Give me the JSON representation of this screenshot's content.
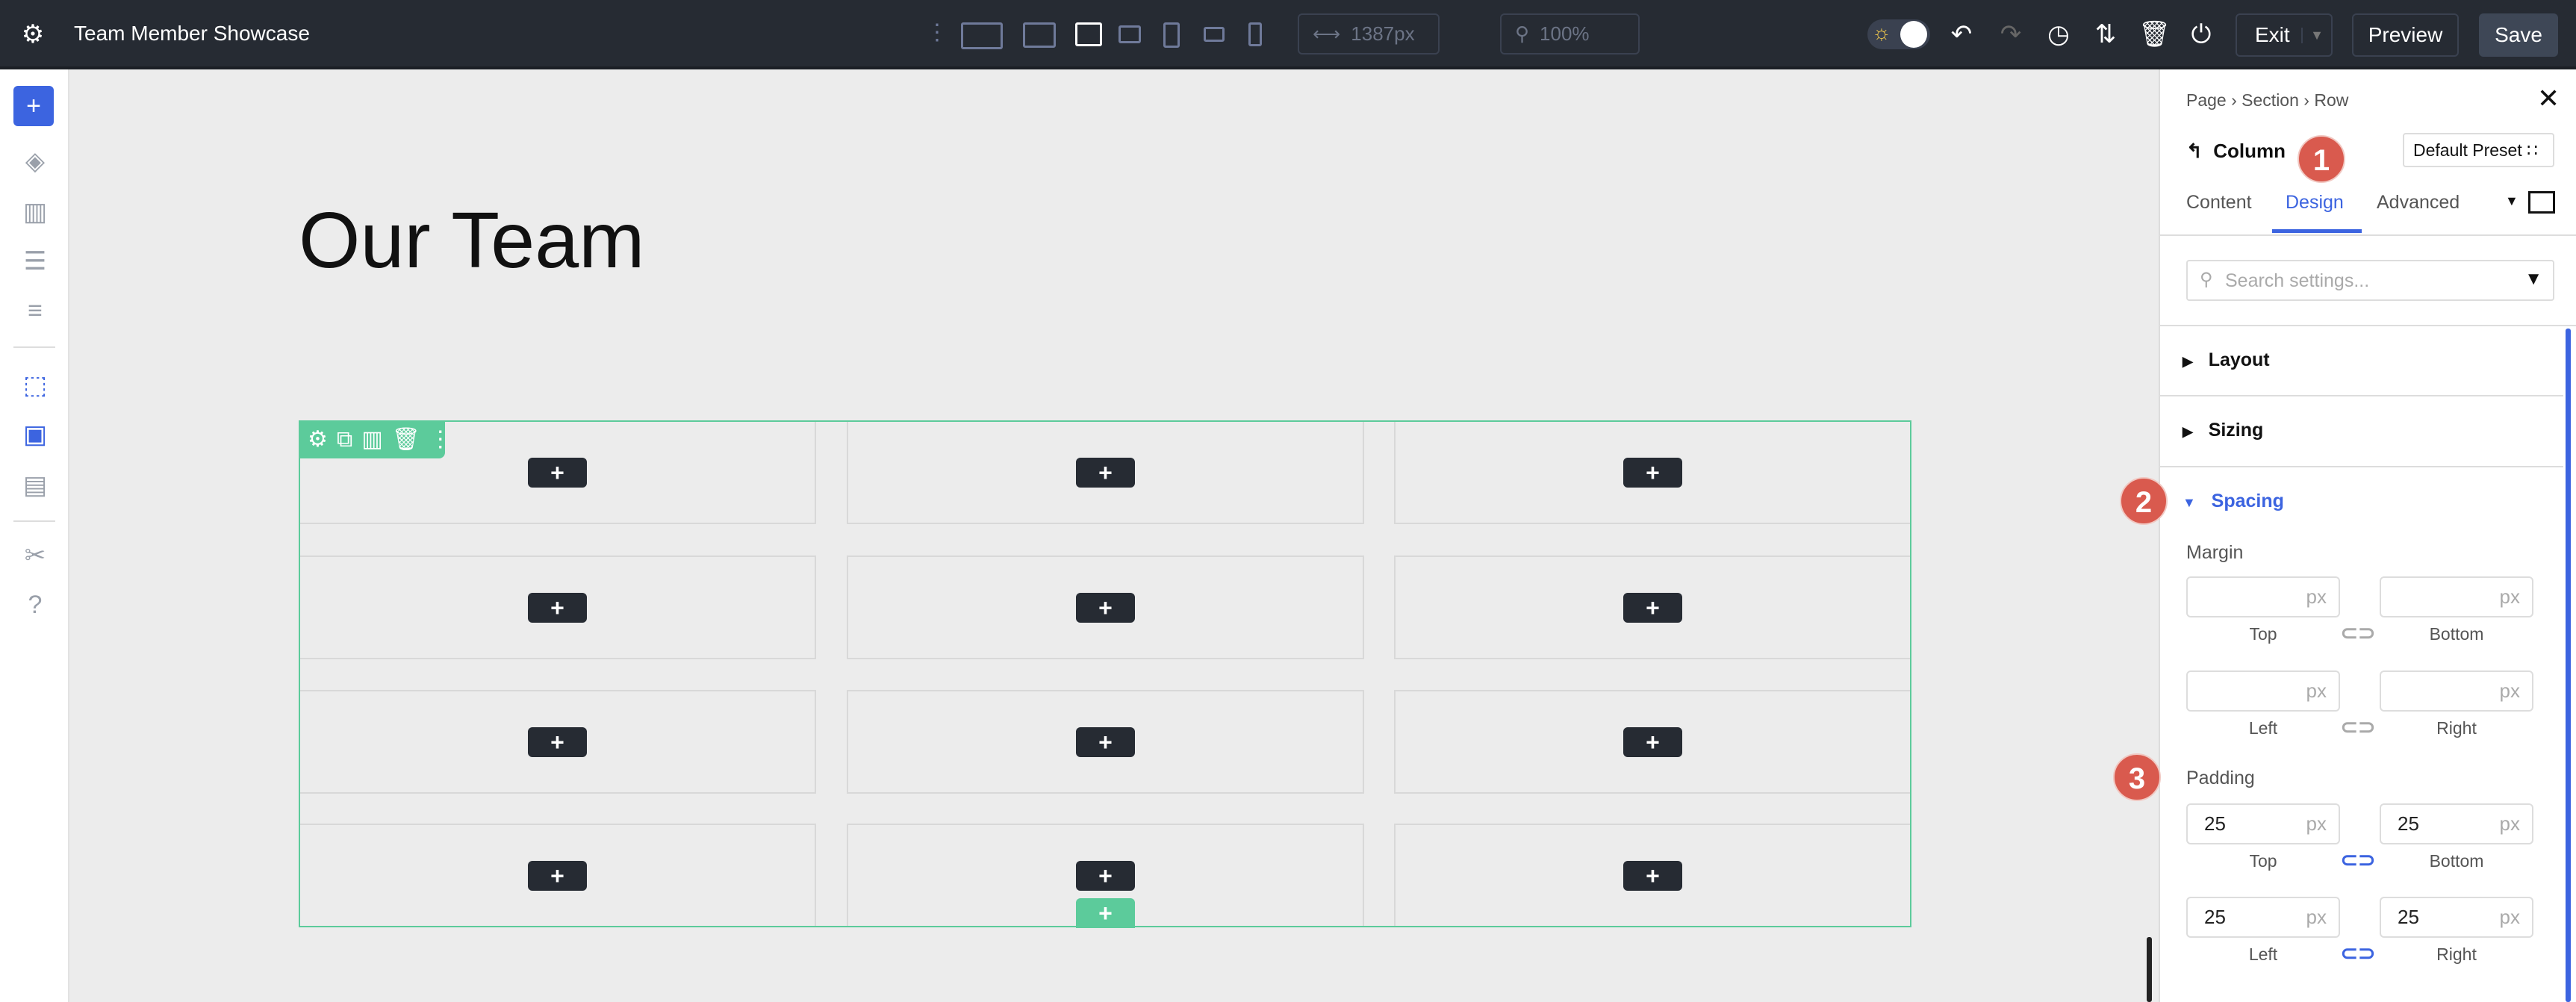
{
  "topbar": {
    "title": "Team Member Showcase",
    "width_value": "1387px",
    "zoom_value": "100%",
    "exit_label": "Exit",
    "preview_label": "Preview",
    "save_label": "Save"
  },
  "canvas": {
    "heading": "Our Team",
    "rows": 4,
    "columns": 3,
    "accent": "#5ccb9b"
  },
  "panel": {
    "breadcrumb": [
      "Page",
      "Section",
      "Row"
    ],
    "element": "Column",
    "preset": "Default Preset",
    "tabs": [
      "Content",
      "Design",
      "Advanced"
    ],
    "active_tab": "Design",
    "search_placeholder": "Search settings...",
    "groups": [
      "Layout",
      "Sizing",
      "Spacing"
    ],
    "open_group": "Spacing",
    "margin": {
      "label": "Margin",
      "unit": "px",
      "top": "",
      "bottom": "",
      "left": "",
      "right": "",
      "labels": [
        "Top",
        "Bottom",
        "Left",
        "Right"
      ]
    },
    "padding": {
      "label": "Padding",
      "unit": "px",
      "top": "25",
      "bottom": "25",
      "left": "25",
      "right": "25",
      "labels": [
        "Top",
        "Bottom",
        "Left",
        "Right"
      ]
    },
    "badges": [
      "1",
      "2",
      "3"
    ],
    "accent": "#3c64e0"
  }
}
